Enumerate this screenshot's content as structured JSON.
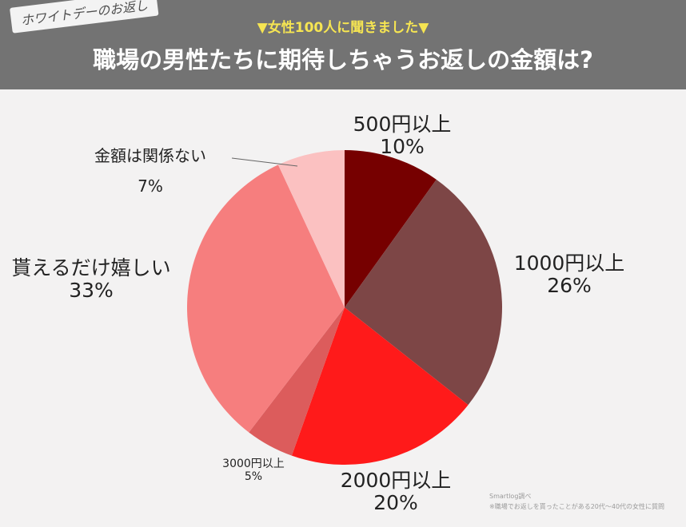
{
  "header": {
    "tag": "ホワイトデーのお返し",
    "subtitle": "▼女性100人に聞きました▼",
    "title": "職場の男性たちに期待しちゃうお返しの金額は?"
  },
  "chart_data": {
    "type": "pie",
    "slices": [
      {
        "label": "500円以上",
        "value": 10,
        "value_label": "10%",
        "color": "#760000"
      },
      {
        "label": "1000円以上",
        "value": 26,
        "value_label": "26%",
        "color": "#7d4646"
      },
      {
        "label": "2000円以上",
        "value": 20,
        "value_label": "20%",
        "color": "#ff1a1a"
      },
      {
        "label": "3000円以上",
        "value": 5,
        "value_label": "5%",
        "color": "#dc5c5c"
      },
      {
        "label": "貰えるだけ嬉しい",
        "value": 33,
        "value_label": "33%",
        "color": "#f67e7e"
      },
      {
        "label": "金額は関係ない",
        "value": 7,
        "value_label": "7%",
        "color": "#fbc1c1"
      }
    ]
  },
  "footer": {
    "credit_line1": "Smartlog調べ",
    "credit_line2": "※職場でお返しを貰ったことがある20代～40代の女性に質問"
  }
}
